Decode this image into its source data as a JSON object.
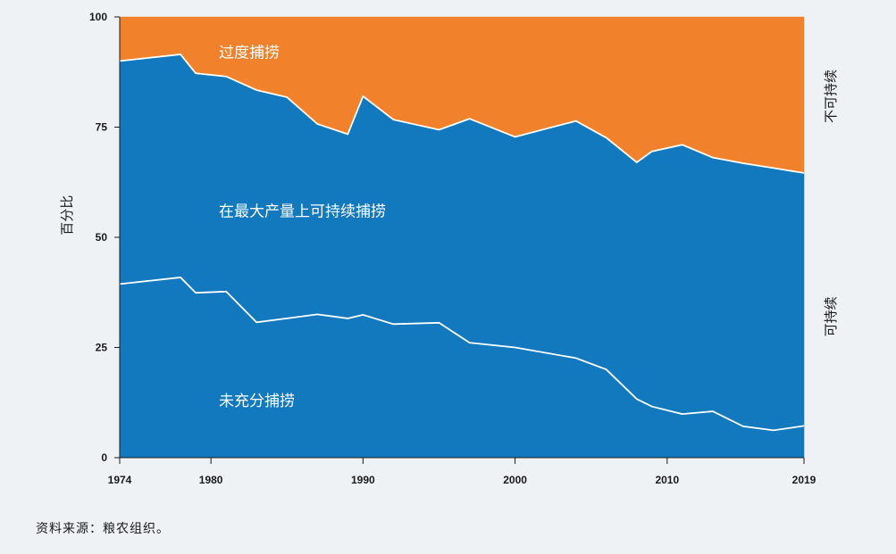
{
  "chart_data": {
    "type": "area",
    "ylabel": "百分比",
    "ylim": [
      0,
      100
    ],
    "xlim": [
      1974,
      2019
    ],
    "yticks": [
      0,
      25,
      50,
      75,
      100
    ],
    "xticks": [
      1974,
      1980,
      1990,
      2000,
      2010,
      2019
    ],
    "x": [
      1974,
      1978,
      1979,
      1981,
      1983,
      1985,
      1987,
      1989,
      1990,
      1992,
      1995,
      1997,
      2000,
      2004,
      2006,
      2008,
      2009,
      2011,
      2013,
      2015,
      2017,
      2019
    ],
    "boundaries": {
      "underfished_top": [
        39.4,
        40.9,
        37.4,
        37.7,
        30.7,
        31.6,
        32.5,
        31.6,
        32.4,
        30.3,
        30.6,
        26.1,
        25.0,
        22.6,
        20.0,
        13.3,
        11.6,
        9.9,
        10.5,
        7.1,
        6.2,
        7.2
      ],
      "sustainable_top": [
        90.0,
        91.5,
        87.2,
        86.5,
        83.4,
        81.8,
        75.7,
        73.4,
        82.0,
        76.7,
        74.4,
        76.9,
        72.8,
        76.4,
        72.6,
        67.0,
        69.5,
        71.0,
        68.1,
        66.8,
        65.7,
        64.6
      ]
    },
    "series": [
      {
        "name": "未充分捕捞",
        "color": "#1279bf"
      },
      {
        "name": "在最大产量上可持续捕捞",
        "color": "#1279bf"
      },
      {
        "name": "过度捕捞",
        "color": "#f1822b"
      }
    ],
    "side_labels": {
      "top": "不可持续",
      "bottom": "可持续"
    },
    "grid": false
  },
  "source": "资料来源：粮农组织。"
}
